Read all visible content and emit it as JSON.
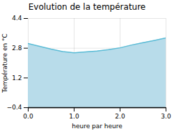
{
  "chart_data": {
    "type": "area",
    "title": "Evolution de la température",
    "xlabel": "heure par heure",
    "ylabel": "Température en °C",
    "x": [
      0,
      0.25,
      0.5,
      0.75,
      1.0,
      1.25,
      1.5,
      1.75,
      2.0,
      2.25,
      2.5,
      2.75,
      3.0
    ],
    "values": [
      3.05,
      2.9,
      2.75,
      2.62,
      2.55,
      2.6,
      2.65,
      2.72,
      2.82,
      2.97,
      3.1,
      3.22,
      3.35
    ],
    "colors": [
      "#b8dcea",
      "#5bbcd6"
    ],
    "xlim": [
      0,
      3
    ],
    "ylim": [
      -0.4,
      4.4
    ],
    "xticks": [
      0,
      1,
      2,
      3
    ],
    "yticks": [
      -0.4,
      1.2,
      2.8,
      4.4
    ],
    "grid": true
  }
}
